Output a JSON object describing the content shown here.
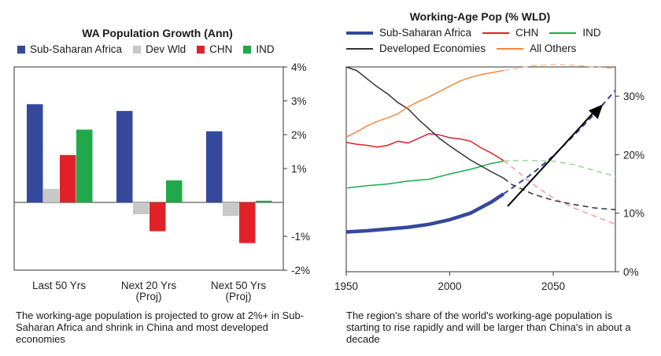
{
  "left": {
    "title": "WA Population Growth (Ann)",
    "legend": [
      {
        "label": "Sub-Saharan Africa",
        "color": "#34489c"
      },
      {
        "label": "Dev Wld",
        "color": "#c8c8c8"
      },
      {
        "label": "CHN",
        "color": "#e02228"
      },
      {
        "label": "IND",
        "color": "#21a84a"
      }
    ],
    "caption": "The working-age population is projected to grow at 2%+ in Sub-Saharan Africa and shrink in China and most developed economies"
  },
  "right": {
    "title": "Working-Age Pop (% WLD)",
    "legend_row1": [
      {
        "label": "Sub-Saharan Africa",
        "color": "#34489c"
      },
      {
        "label": "CHN",
        "color": "#e02228"
      },
      {
        "label": "IND",
        "color": "#21a84a"
      }
    ],
    "legend_row2": [
      {
        "label": "Developed Economies",
        "color": "#333333"
      },
      {
        "label": "All Others",
        "color": "#f2873a"
      }
    ],
    "caption": "The region's share of the world's working-age population is starting to rise rapidly and will be larger than China's in about a decade"
  },
  "chart_data": [
    {
      "type": "bar",
      "title": "WA Population Growth (Ann)",
      "categories": [
        "Last 50 Yrs",
        "Next 20 Yrs\n(Proj)",
        "Next 50 Yrs\n(Proj)"
      ],
      "series": [
        {
          "name": "Sub-Saharan Africa",
          "color": "#34489c",
          "values": [
            2.9,
            2.7,
            2.1
          ]
        },
        {
          "name": "Dev Wld",
          "color": "#c8c8c8",
          "values": [
            0.4,
            -0.35,
            -0.4
          ]
        },
        {
          "name": "CHN",
          "color": "#e02228",
          "values": [
            1.4,
            -0.85,
            -1.2
          ]
        },
        {
          "name": "IND",
          "color": "#21a84a",
          "values": [
            2.15,
            0.65,
            0.05
          ]
        }
      ],
      "ylim": [
        -2,
        4
      ],
      "yticks": [
        4,
        3,
        2,
        1,
        -1,
        -2
      ],
      "ytick_labels": [
        "4%",
        "3%",
        "2%",
        "1%",
        "-1%",
        "-2%"
      ],
      "xlabel": "",
      "ylabel": ""
    },
    {
      "type": "line",
      "title": "Working-Age Pop (% WLD)",
      "xlim": [
        1950,
        2080
      ],
      "ylim": [
        0,
        35
      ],
      "xticks": [
        1950,
        2000,
        2050
      ],
      "yticks": [
        0,
        10,
        20,
        30
      ],
      "ytick_labels": [
        "0%",
        "10%",
        "20%",
        "30%"
      ],
      "projection_start": 2026,
      "annotation": "arrow-upward",
      "series": [
        {
          "name": "Sub-Saharan Africa",
          "color": "#34489c",
          "x": [
            1950,
            1960,
            1970,
            1980,
            1990,
            2000,
            2010,
            2020,
            2026,
            2030,
            2040,
            2050,
            2060,
            2070,
            2080
          ],
          "y": [
            6.8,
            7.0,
            7.3,
            7.6,
            8.1,
            8.9,
            10.0,
            11.9,
            13.3,
            14.3,
            16.8,
            19.8,
            23.3,
            27.0,
            31.0
          ]
        },
        {
          "name": "CHN",
          "color": "#e02228",
          "x": [
            1950,
            1955,
            1960,
            1965,
            1970,
            1975,
            1980,
            1985,
            1990,
            1995,
            2000,
            2005,
            2010,
            2015,
            2020,
            2026,
            2030,
            2040,
            2050,
            2060,
            2070,
            2080
          ],
          "y": [
            22.1,
            21.8,
            21.6,
            21.3,
            21.6,
            22.3,
            22.0,
            22.8,
            23.6,
            23.4,
            22.9,
            22.7,
            22.3,
            21.2,
            20.3,
            19.0,
            17.9,
            15.0,
            12.6,
            10.9,
            9.5,
            8.1
          ]
        },
        {
          "name": "IND",
          "color": "#21a84a",
          "x": [
            1950,
            1960,
            1970,
            1980,
            1990,
            2000,
            2010,
            2020,
            2026,
            2030,
            2040,
            2050,
            2060,
            2070,
            2080
          ],
          "y": [
            14.3,
            14.7,
            15.0,
            15.5,
            15.8,
            16.7,
            17.5,
            18.5,
            18.9,
            19.0,
            19.0,
            18.9,
            18.3,
            17.3,
            16.3
          ]
        },
        {
          "name": "Developed Economies",
          "color": "#333333",
          "x": [
            1950,
            1955,
            1960,
            1965,
            1970,
            1975,
            1980,
            1985,
            1990,
            1995,
            2000,
            2005,
            2010,
            2015,
            2020,
            2026,
            2030,
            2040,
            2050,
            2060,
            2070,
            2080
          ],
          "y": [
            35.0,
            34.4,
            33.0,
            31.6,
            30.4,
            28.9,
            27.8,
            26.0,
            24.4,
            22.8,
            21.5,
            20.3,
            19.1,
            18.1,
            17.1,
            16.0,
            14.9,
            13.3,
            12.2,
            11.5,
            10.9,
            10.6
          ]
        },
        {
          "name": "All Others",
          "color": "#f2873a",
          "x": [
            1950,
            1955,
            1960,
            1965,
            1970,
            1975,
            1980,
            1985,
            1990,
            1995,
            2000,
            2005,
            2010,
            2015,
            2020,
            2026,
            2030,
            2040,
            2050,
            2060,
            2070,
            2080
          ],
          "y": [
            23.0,
            23.9,
            24.9,
            25.7,
            26.3,
            27.0,
            28.2,
            29.1,
            29.9,
            30.8,
            31.7,
            32.6,
            33.2,
            33.7,
            34.0,
            34.4,
            34.6,
            35.2,
            35.4,
            35.3,
            35.0,
            34.7
          ]
        }
      ]
    }
  ]
}
